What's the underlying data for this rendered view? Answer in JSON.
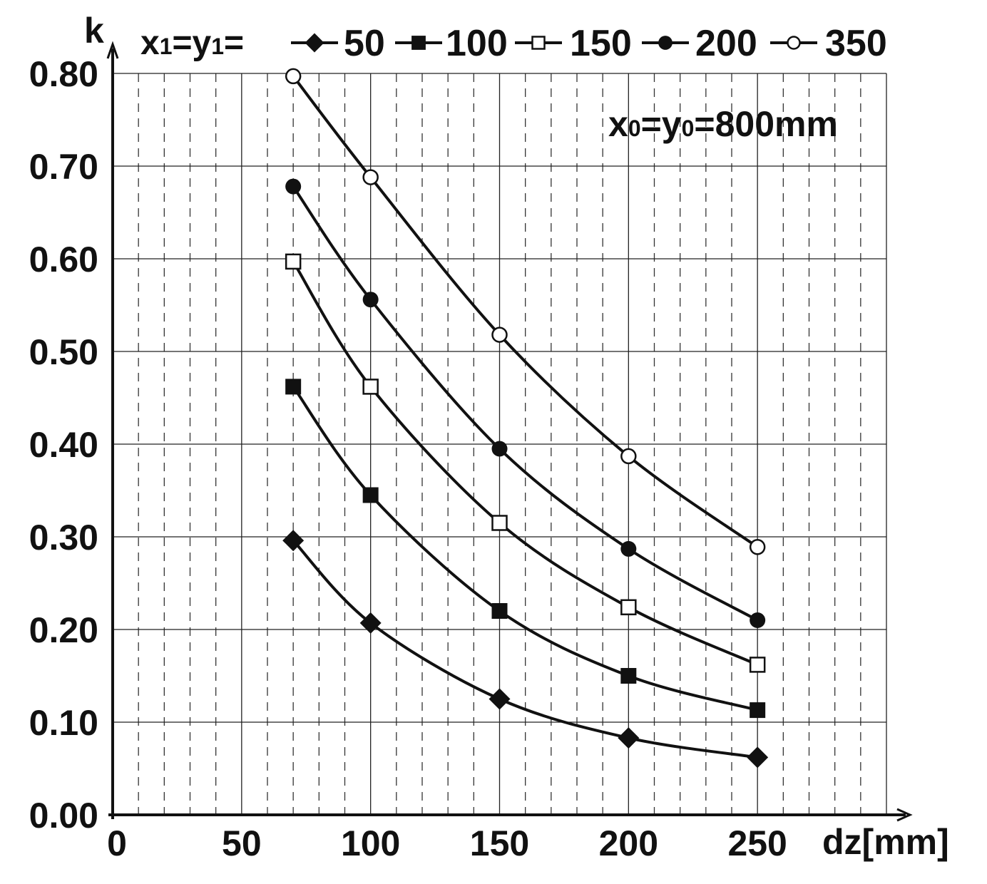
{
  "chart_data": {
    "type": "line",
    "title": "",
    "xlabel": "dz[mm]",
    "ylabel": "k",
    "xlim": [
      0,
      300
    ],
    "ylim": [
      0,
      0.8
    ],
    "x_ticks": [
      0,
      50,
      100,
      150,
      200,
      250
    ],
    "x_tick_labels": [
      "0",
      "50",
      "100",
      "150",
      "200",
      "250"
    ],
    "y_ticks": [
      0,
      0.1,
      0.2,
      0.3,
      0.4,
      0.5,
      0.6,
      0.7,
      0.8
    ],
    "y_tick_labels": [
      "0.00",
      "0.10",
      "0.20",
      "0.30",
      "0.40",
      "0.50",
      "0.60",
      "0.70",
      "0.80"
    ],
    "grid": {
      "major": true,
      "minor_x_dashed": true,
      "minor_x_step": 10
    },
    "legend": {
      "position": "top",
      "prefix_main": "x",
      "prefix_sub1": "1",
      "prefix_eq": "=y",
      "prefix_sub2": "1",
      "prefix_end": "="
    },
    "annotation": {
      "main1": "x",
      "sub1": "0",
      "main2": "=y",
      "sub2": "0",
      "main3": "=800mm"
    },
    "x": [
      70,
      100,
      150,
      200,
      250
    ],
    "series": [
      {
        "name": "50",
        "marker": "diamond-filled",
        "values": [
          0.296,
          0.207,
          0.125,
          0.083,
          0.062
        ]
      },
      {
        "name": "100",
        "marker": "square-filled",
        "values": [
          0.462,
          0.345,
          0.22,
          0.15,
          0.113
        ]
      },
      {
        "name": "150",
        "marker": "square-open",
        "values": [
          0.597,
          0.462,
          0.315,
          0.224,
          0.162
        ]
      },
      {
        "name": "200",
        "marker": "circle-filled",
        "values": [
          0.678,
          0.556,
          0.395,
          0.287,
          0.21
        ]
      },
      {
        "name": "350",
        "marker": "circle-open",
        "values": [
          0.797,
          0.688,
          0.518,
          0.387,
          0.289
        ]
      }
    ],
    "colors": {
      "line": "#111111",
      "grid_major": "#222222",
      "grid_minor": "#333333",
      "background": "#ffffff"
    }
  }
}
